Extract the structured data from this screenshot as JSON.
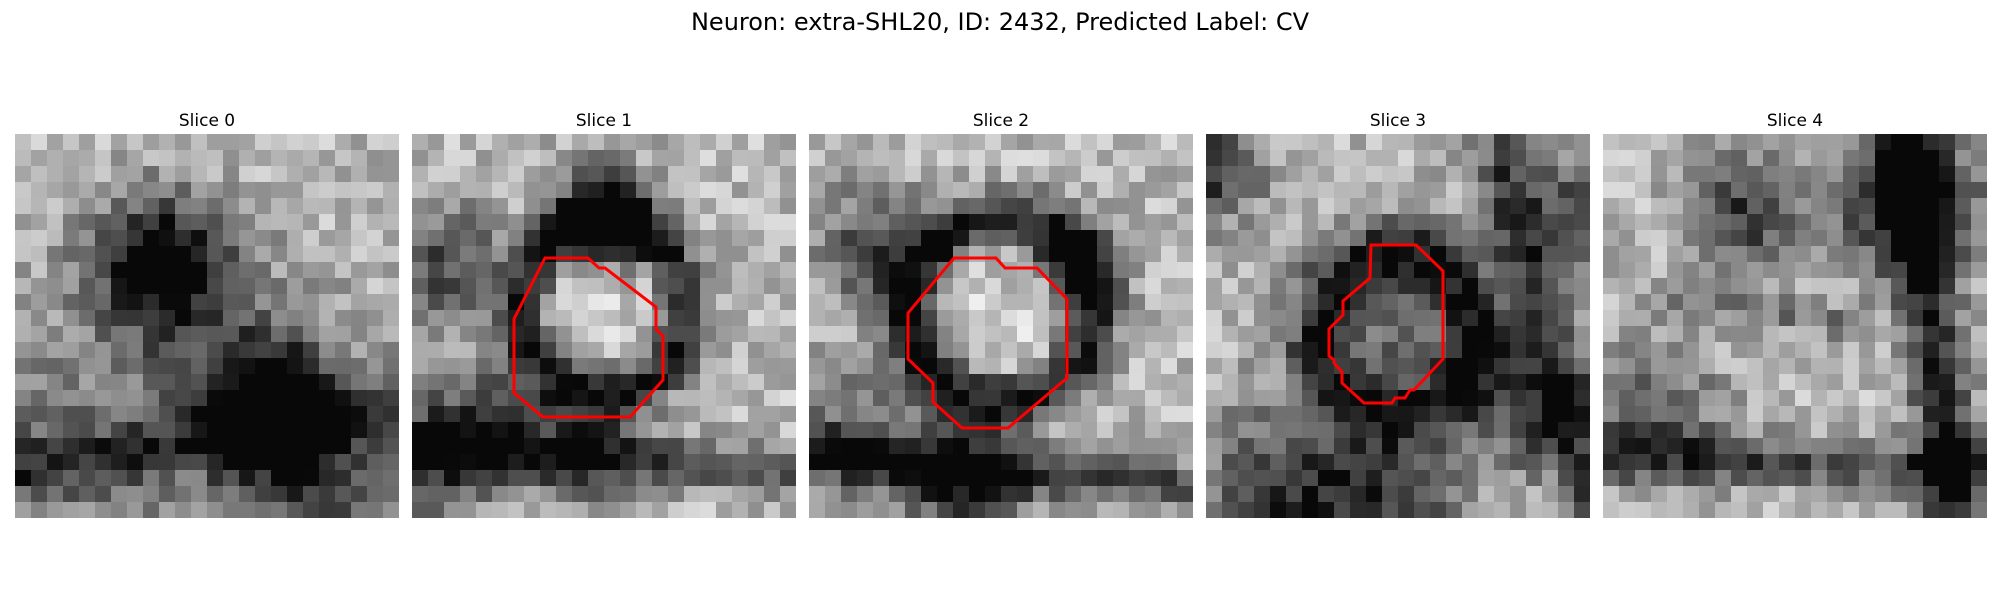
{
  "figure": {
    "title": "Neuron: extra-SHL20, ID: 2432, Predicted Label: CV"
  },
  "panels": [
    {
      "title": "Slice 0",
      "has_outline": false
    },
    {
      "title": "Slice 1",
      "has_outline": true
    },
    {
      "title": "Slice 2",
      "has_outline": true
    },
    {
      "title": "Slice 3",
      "has_outline": true
    },
    {
      "title": "Slice 4",
      "has_outline": false
    }
  ],
  "colors": {
    "outline": "#ff0000",
    "background": "#ffffff"
  }
}
